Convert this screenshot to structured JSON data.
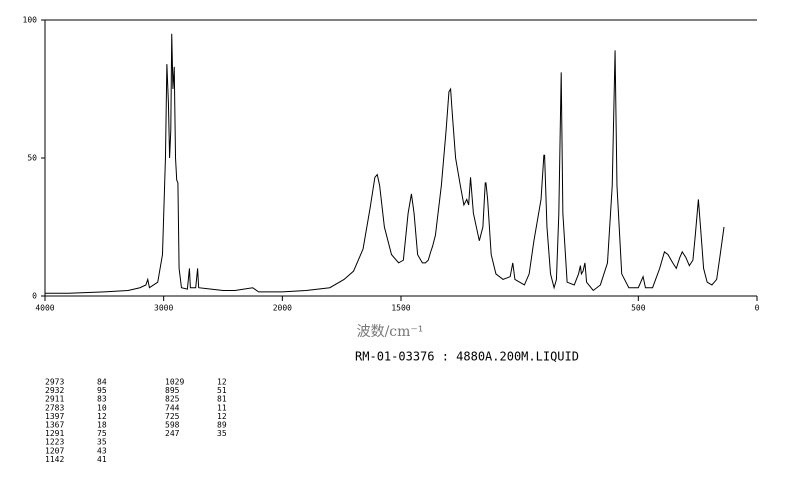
{
  "chart_data": {
    "type": "line",
    "subtitle": "RM-01-03376 : 4880A.200M.LIQUID",
    "x_label": "波数/cm⁻¹",
    "xlim": [
      4000,
      0
    ],
    "xscale": {
      "type": "piecewise",
      "break": 2000
    },
    "xticks": [
      4000,
      3000,
      2000,
      1500,
      500,
      0
    ],
    "ylim": [
      0,
      100
    ],
    "yticks": [
      0,
      50,
      100
    ],
    "color": "#000000",
    "x": [
      4000,
      3800,
      3500,
      3300,
      3200,
      3150,
      3134,
      3120,
      3050,
      3010,
      2985,
      2973,
      2960,
      2950,
      2940,
      2932,
      2922,
      2911,
      2900,
      2890,
      2880,
      2870,
      2850,
      2800,
      2783,
      2775,
      2730,
      2714,
      2705,
      2600,
      2500,
      2400,
      2250,
      2200,
      2050,
      2000,
      1900,
      1800,
      1740,
      1700,
      1660,
      1630,
      1610,
      1600,
      1590,
      1570,
      1540,
      1510,
      1490,
      1470,
      1456,
      1445,
      1430,
      1410,
      1397,
      1385,
      1375,
      1367,
      1355,
      1330,
      1310,
      1298,
      1291,
      1283,
      1270,
      1250,
      1235,
      1223,
      1215,
      1207,
      1195,
      1170,
      1155,
      1145,
      1142,
      1135,
      1120,
      1100,
      1070,
      1040,
      1029,
      1020,
      980,
      960,
      940,
      910,
      898,
      895,
      885,
      870,
      855,
      845,
      835,
      825,
      818,
      800,
      770,
      752,
      744,
      740,
      733,
      725,
      718,
      690,
      660,
      630,
      610,
      598,
      590,
      570,
      540,
      500,
      480,
      470,
      440,
      410,
      390,
      375,
      355,
      340,
      325,
      315,
      300,
      285,
      270,
      260,
      247,
      238,
      225,
      210,
      190,
      170,
      155,
      139
    ],
    "values": [
      1,
      1,
      1.5,
      2,
      3,
      4,
      6,
      3,
      5,
      15,
      50,
      84,
      70,
      50,
      60,
      95,
      75,
      83,
      50,
      42,
      41,
      10,
      3,
      2.5,
      10,
      3,
      3,
      10,
      3,
      2.5,
      2,
      2,
      3,
      1.5,
      1.5,
      1.5,
      2,
      3,
      6,
      9,
      17,
      32,
      43,
      44,
      40,
      25,
      15,
      12,
      13,
      30,
      37,
      30,
      15,
      12,
      12,
      13,
      16,
      18,
      22,
      40,
      60,
      74,
      75,
      65,
      50,
      40,
      33,
      35,
      33,
      43,
      30,
      20,
      25,
      41,
      41,
      35,
      15,
      8,
      6,
      7,
      12,
      6,
      4,
      8,
      20,
      35,
      51,
      51,
      25,
      8,
      3,
      6,
      30,
      81,
      30,
      5,
      4,
      8,
      11,
      8,
      9,
      12,
      5,
      2,
      4,
      12,
      40,
      89,
      40,
      8,
      3,
      3,
      7,
      3,
      3,
      10,
      16,
      15,
      12,
      10,
      14,
      16,
      14,
      11,
      13,
      22,
      35,
      25,
      10,
      5,
      4,
      6,
      15,
      25
    ],
    "peak_table": [
      [
        2973,
        84
      ],
      [
        2932,
        95
      ],
      [
        2911,
        83
      ],
      [
        2783,
        10
      ],
      [
        1397,
        12
      ],
      [
        1367,
        18
      ],
      [
        1291,
        75
      ],
      [
        1223,
        35
      ],
      [
        1207,
        43
      ],
      [
        1142,
        41
      ],
      [
        1029,
        12
      ],
      [
        895,
        51
      ],
      [
        825,
        81
      ],
      [
        744,
        11
      ],
      [
        725,
        12
      ],
      [
        598,
        89
      ],
      [
        247,
        35
      ]
    ]
  }
}
